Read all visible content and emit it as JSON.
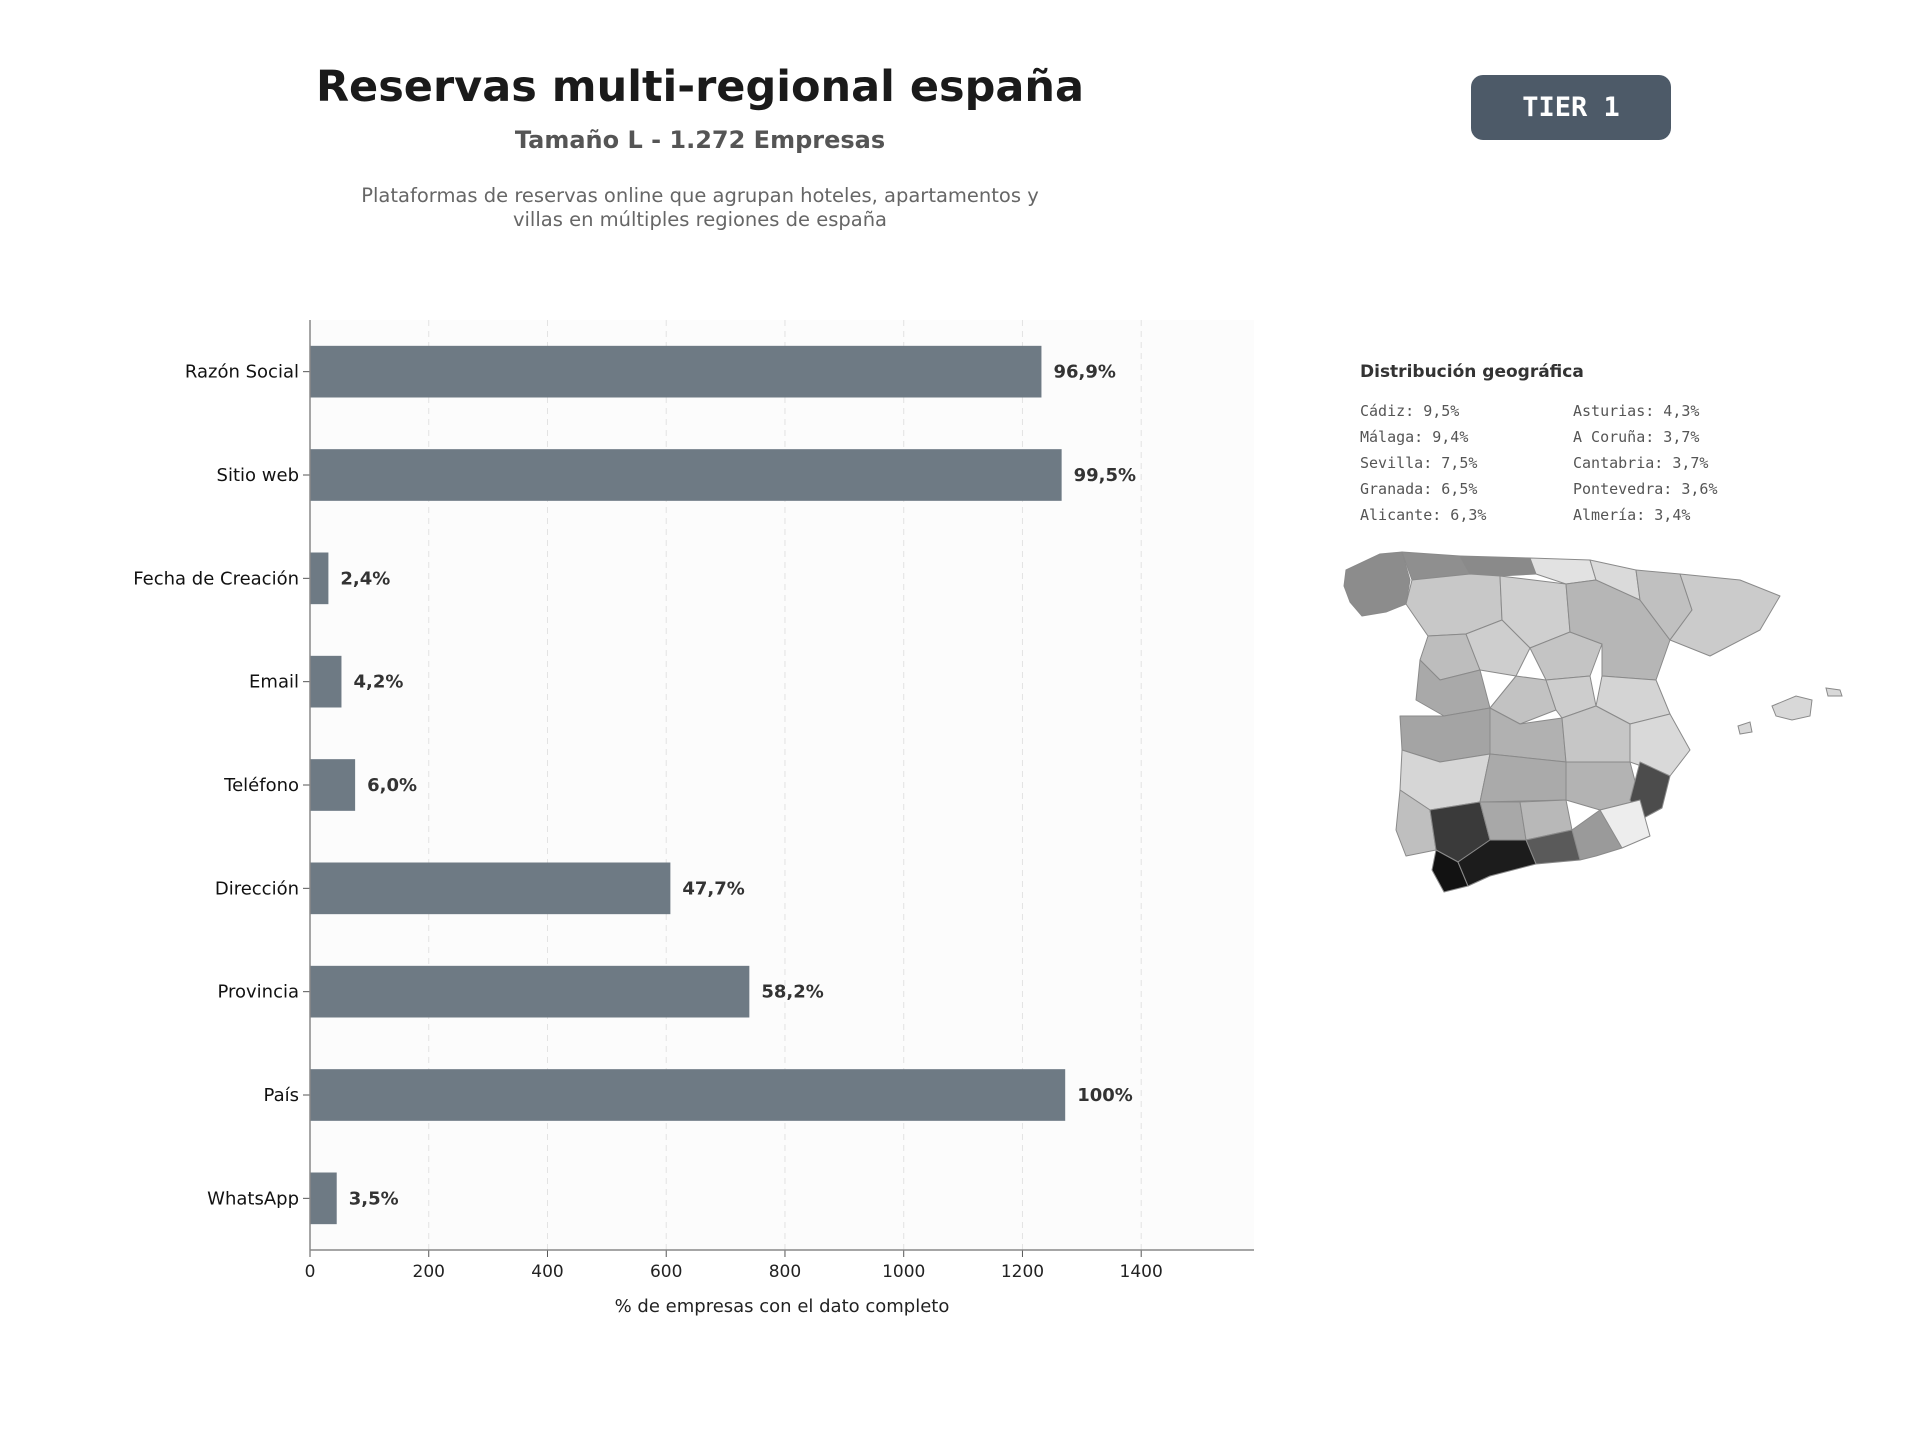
{
  "header": {
    "title": "Reservas multi-regional españa",
    "subtitle": "Tamaño L - 1.272 Empresas",
    "description_line1": "Plataformas de reservas online que agrupan hoteles, apartamentos y",
    "description_line2": "villas en múltiples regiones de españa",
    "tier_badge": "TIER 1"
  },
  "chart_data": {
    "type": "bar",
    "orientation": "horizontal",
    "categories": [
      "Razón Social",
      "Sitio web",
      "Fecha de Creación",
      "Email",
      "Teléfono",
      "Dirección",
      "Provincia",
      "País",
      "WhatsApp"
    ],
    "values": [
      1232,
      1266,
      31,
      53,
      76,
      607,
      740,
      1272,
      45
    ],
    "data_labels": [
      "96,9%",
      "99,5%",
      "2,4%",
      "4,2%",
      "6,0%",
      "47,7%",
      "58,2%",
      "100%",
      "3,5%"
    ],
    "xlabel": "% de empresas con el dato completo",
    "ylabel": "",
    "xlim": [
      0,
      1590
    ],
    "xticks": [
      0,
      200,
      400,
      600,
      800,
      1000,
      1200,
      1400
    ],
    "grid": true,
    "bar_color": "#6e7a84"
  },
  "geo": {
    "title": "Distribución geográfica",
    "left_column": [
      "Cádiz: 9,5%",
      "Málaga: 9,4%",
      "Sevilla: 7,5%",
      "Granada: 6,5%",
      "Alicante: 6,3%"
    ],
    "right_column": [
      "Asturias: 4,3%",
      "A Coruña: 3,7%",
      "Cantabria: 3,7%",
      "Pontevedra: 3,6%",
      "Almería: 3,4%"
    ]
  }
}
